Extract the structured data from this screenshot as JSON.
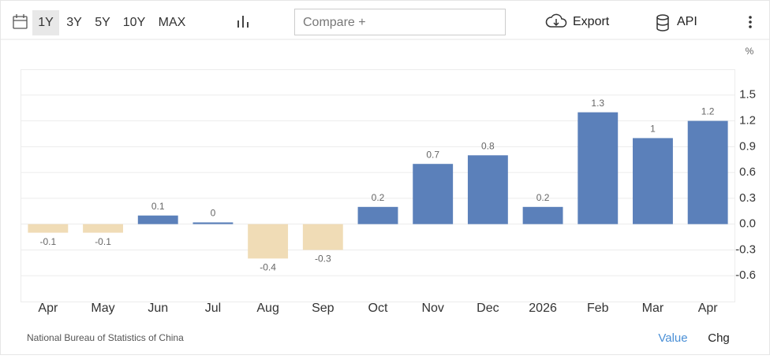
{
  "toolbar": {
    "ranges": [
      "1Y",
      "3Y",
      "5Y",
      "10Y",
      "MAX"
    ],
    "selected_range": "1Y",
    "compare": "Compare +",
    "export": "Export",
    "api": "API"
  },
  "chart_data": {
    "type": "bar",
    "unit": "%",
    "categories": [
      "Apr",
      "May",
      "Jun",
      "Jul",
      "Aug",
      "Sep",
      "Oct",
      "Nov",
      "Dec",
      "2026",
      "Feb",
      "Mar",
      "Apr"
    ],
    "values": [
      -0.1,
      -0.1,
      0.1,
      0.02,
      -0.4,
      -0.3,
      0.2,
      0.7,
      0.8,
      0.2,
      1.3,
      1,
      1.2
    ],
    "value_labels": [
      "-0.1",
      "-0.1",
      "0.1",
      "0",
      "-0.4",
      "-0.3",
      "0.2",
      "0.7",
      "0.8",
      "0.2",
      "1.3",
      "1",
      "1.2"
    ],
    "positive_color": "#5b80ba",
    "negative_color": "#f0dcb6",
    "ylim": [
      -0.9,
      1.8
    ],
    "yticks": [
      -0.6,
      -0.3,
      {
        "value": 0,
        "label": "0.0"
      },
      0.3,
      0.6,
      0.9,
      1.2,
      1.5
    ],
    "grid": true,
    "source": "National Bureau of Statistics of China"
  },
  "footer": {
    "value": "Value",
    "chg": "Chg"
  }
}
